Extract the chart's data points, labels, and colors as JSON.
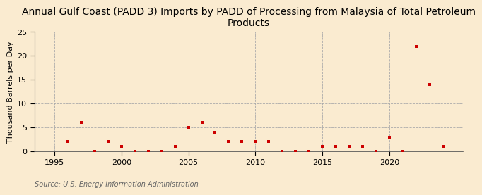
{
  "title": "Annual Gulf Coast (PADD 3) Imports by PADD of Processing from Malaysia of Total Petroleum\nProducts",
  "ylabel": "Thousand Barrels per Day",
  "source": "Source: U.S. Energy Information Administration",
  "background_color": "#faebd0",
  "plot_bg_color": "#faebd0",
  "marker_color": "#cc0000",
  "years": [
    1996,
    1997,
    1998,
    1999,
    2000,
    2001,
    2002,
    2003,
    2004,
    2005,
    2006,
    2007,
    2008,
    2009,
    2010,
    2011,
    2012,
    2013,
    2014,
    2015,
    2016,
    2017,
    2018,
    2019,
    2020,
    2021,
    2022,
    2023,
    2024
  ],
  "values": [
    2,
    6,
    0,
    2,
    1,
    0,
    0,
    0,
    1,
    5,
    6,
    4,
    2,
    2,
    2,
    2,
    0,
    0,
    0,
    1,
    1,
    1,
    1,
    0,
    3,
    0,
    22,
    14,
    1
  ],
  "xlim": [
    1993.5,
    2025.5
  ],
  "ylim": [
    0,
    25
  ],
  "yticks": [
    0,
    5,
    10,
    15,
    20,
    25
  ],
  "xticks": [
    1995,
    2000,
    2005,
    2010,
    2015,
    2020
  ],
  "title_fontsize": 10,
  "label_fontsize": 8,
  "tick_fontsize": 8,
  "source_fontsize": 7,
  "grid_color": "#aaaaaa",
  "grid_style": "--"
}
